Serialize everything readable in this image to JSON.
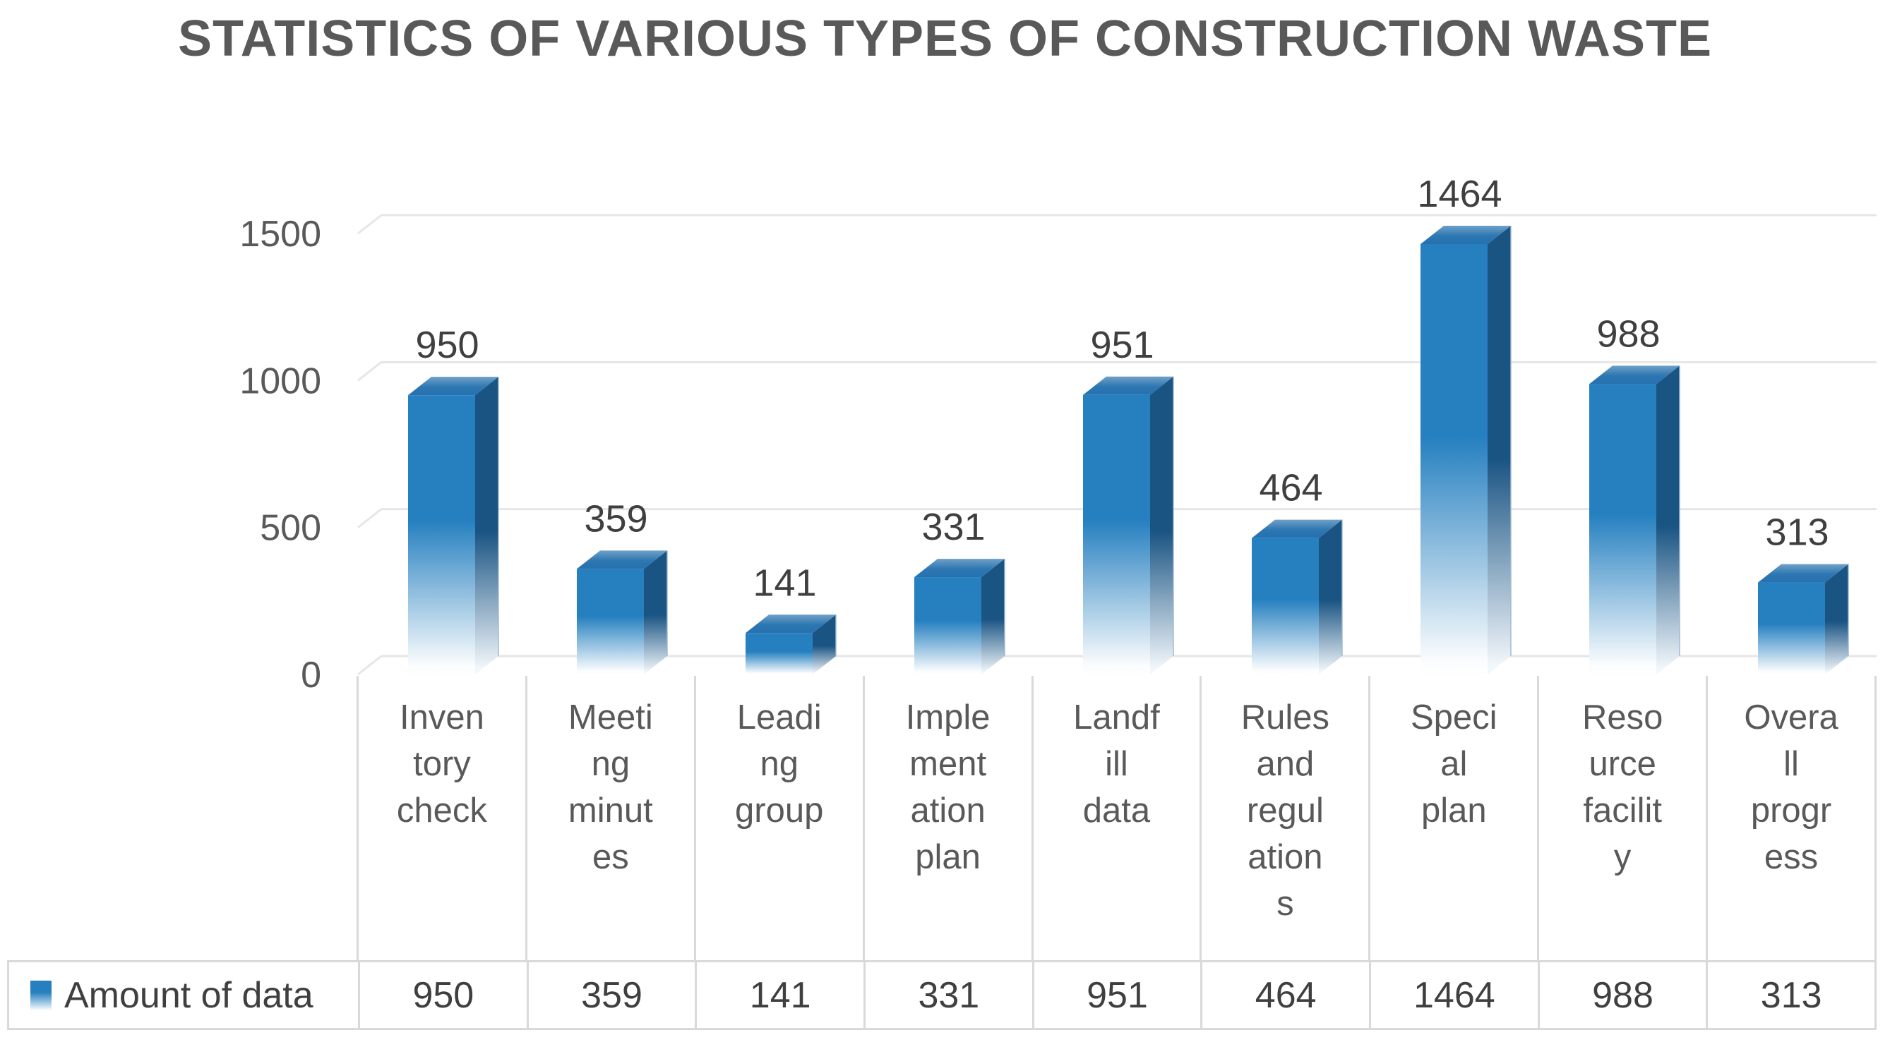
{
  "title": "STATISTICS OF VARIOUS TYPES OF CONSTRUCTION WASTE",
  "chart_data": {
    "type": "bar",
    "style": "3d-column-with-gradient-fade",
    "title": "STATISTICS OF VARIOUS TYPES OF CONSTRUCTION WASTE",
    "categories": [
      "Inventory check",
      "Meeting minutes",
      "Leading group",
      "Implementation plan",
      "Landfill data",
      "Rules and regulations",
      "Special plan",
      "Resource facility",
      "Overall progress"
    ],
    "category_display_lines": [
      [
        "Inven",
        "tory",
        "check"
      ],
      [
        "Meeti",
        "ng",
        "minut",
        "es"
      ],
      [
        "Leadi",
        "ng",
        "group"
      ],
      [
        "Imple",
        "ment",
        "ation",
        "plan"
      ],
      [
        "Landf",
        "ill",
        "data"
      ],
      [
        "Rules",
        "and",
        "regul",
        "ation",
        "s"
      ],
      [
        "Speci",
        "al",
        "plan"
      ],
      [
        "Reso",
        "urce",
        "facilit",
        "y"
      ],
      [
        "Overa",
        "ll",
        "progr",
        "ess"
      ]
    ],
    "series": [
      {
        "name": "Amount of data",
        "values": [
          950,
          359,
          141,
          331,
          951,
          464,
          1464,
          988,
          313
        ]
      }
    ],
    "data_labels": [
      950,
      359,
      141,
      331,
      951,
      464,
      1464,
      988,
      313
    ],
    "xlabel": "",
    "ylabel": "",
    "yticks": [
      0,
      500,
      1000,
      1500
    ],
    "ylim": [
      0,
      1500
    ],
    "grid": true,
    "legend_position": "bottom-table"
  },
  "colors": {
    "bar_front": "#2680C0",
    "bar_side": "#1A5483",
    "bar_top_back": "#6FA0C8",
    "bar_top_front": "#2571AF",
    "bar_fade": "#FBFDFE",
    "side_fade": "#F2F7FB",
    "side_edge_highlight": "#9FB9D4",
    "gridline": "#E6E6E6",
    "table_border": "#D9D9D9",
    "axis_text": "#595959",
    "category_text": "#595959",
    "value_text": "#3F3F3F",
    "title_text": "#595959"
  }
}
